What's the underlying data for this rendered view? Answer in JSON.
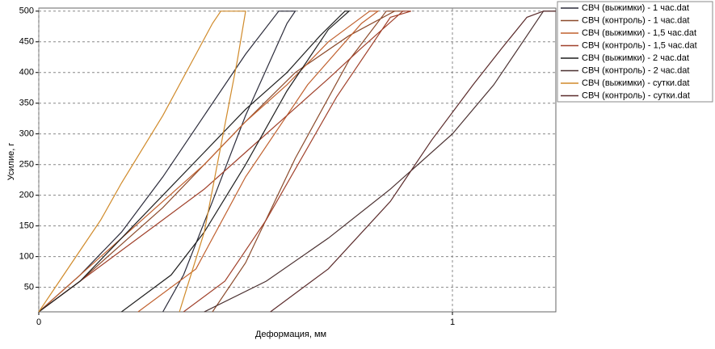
{
  "chart_data": {
    "type": "line",
    "xlabel": "Деформация, мм",
    "ylabel": "Усилие, г",
    "xlim": [
      0,
      1.25
    ],
    "ylim": [
      10,
      505
    ],
    "xticks": [
      0,
      1
    ],
    "yticks": [
      50,
      100,
      150,
      200,
      250,
      300,
      350,
      400,
      450,
      500
    ],
    "grid": true,
    "legend": "outside-right",
    "series": [
      {
        "name": "СВЧ (выжимки) - 1 час.dat",
        "color": "#2b2b3a",
        "x": [
          0,
          0.1,
          0.2,
          0.3,
          0.4,
          0.5,
          0.58,
          0.62,
          0.6,
          0.5,
          0.42,
          0.35,
          0.3
        ],
        "values": [
          10,
          70,
          140,
          230,
          330,
          430,
          500,
          500,
          480,
          330,
          190,
          70,
          10
        ]
      },
      {
        "name": "СВЧ (контроль) - 1 час.dat",
        "color": "#8b4a2b",
        "x": [
          0,
          0.1,
          0.2,
          0.3,
          0.4,
          0.5,
          0.62,
          0.75,
          0.86,
          0.88,
          0.84,
          0.75,
          0.62,
          0.5,
          0.42
        ],
        "values": [
          10,
          60,
          120,
          180,
          250,
          320,
          400,
          460,
          500,
          500,
          500,
          420,
          260,
          90,
          10
        ]
      },
      {
        "name": "СВЧ (выжимки) - 1,5 час.dat",
        "color": "#c0602e",
        "x": [
          0,
          0.1,
          0.2,
          0.3,
          0.4,
          0.5,
          0.6,
          0.7,
          0.8,
          0.82,
          0.78,
          0.65,
          0.5,
          0.38,
          0.24
        ],
        "values": [
          10,
          70,
          130,
          190,
          250,
          320,
          380,
          450,
          500,
          500,
          480,
          380,
          230,
          80,
          10
        ]
      },
      {
        "name": "СВЧ (контроль) - 1,5 час.dat",
        "color": "#a0402a",
        "x": [
          0,
          0.1,
          0.2,
          0.3,
          0.4,
          0.5,
          0.6,
          0.7,
          0.78,
          0.88,
          0.9,
          0.85,
          0.72,
          0.55,
          0.45,
          0.35
        ],
        "values": [
          10,
          60,
          110,
          160,
          210,
          270,
          330,
          390,
          440,
          500,
          500,
          490,
          360,
          160,
          60,
          10
        ]
      },
      {
        "name": "СВЧ (выжимки) - 2 час.dat",
        "color": "#1f1f1f",
        "x": [
          0,
          0.1,
          0.2,
          0.3,
          0.4,
          0.5,
          0.6,
          0.68,
          0.74,
          0.75,
          0.7,
          0.6,
          0.5,
          0.4,
          0.32,
          0.2
        ],
        "values": [
          10,
          60,
          130,
          200,
          270,
          340,
          400,
          460,
          500,
          500,
          470,
          370,
          250,
          140,
          70,
          10
        ]
      },
      {
        "name": "СВЧ (контроль) - 2 час.dat",
        "color": "#4a3030",
        "x": [
          0.4,
          0.55,
          0.7,
          0.85,
          1.0,
          1.1,
          1.18,
          1.22,
          1.25
        ],
        "values": [
          10,
          60,
          130,
          210,
          300,
          380,
          460,
          500,
          500
        ]
      },
      {
        "name": "СВЧ (выжимки) - сутки.dat",
        "color": "#d08a2a",
        "x": [
          0,
          0.05,
          0.1,
          0.15,
          0.2,
          0.3,
          0.38,
          0.42,
          0.44,
          0.5,
          0.48,
          0.44,
          0.4,
          0.34
        ],
        "values": [
          10,
          60,
          110,
          160,
          220,
          330,
          430,
          480,
          500,
          500,
          420,
          280,
          140,
          10
        ]
      },
      {
        "name": "СВЧ (контроль) - сутки.dat",
        "color": "#5a2a2a",
        "x": [
          0.56,
          0.7,
          0.85,
          0.95,
          1.05,
          1.12,
          1.18,
          1.22,
          1.25
        ],
        "values": [
          10,
          80,
          190,
          290,
          380,
          440,
          490,
          500,
          500
        ]
      }
    ]
  }
}
